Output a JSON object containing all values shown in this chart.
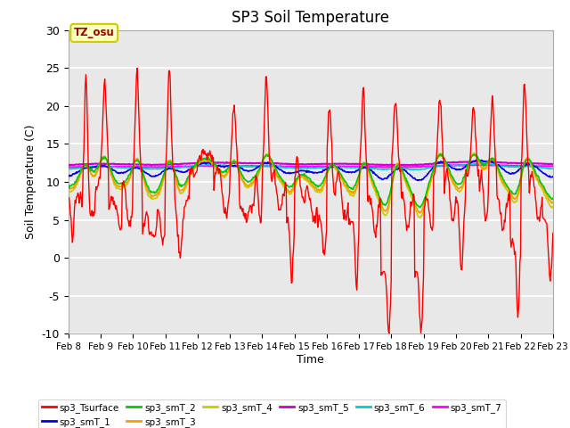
{
  "title": "SP3 Soil Temperature",
  "xlabel": "Time",
  "ylabel": "Soil Temperature (C)",
  "ylim": [
    -10,
    30
  ],
  "xlim": [
    0,
    360
  ],
  "plot_bg_color": "#e8e8e8",
  "fig_bg_color": "#ffffff",
  "annotation_text": "TZ_osu",
  "annotation_color": "#990000",
  "annotation_bg": "#ffffc0",
  "annotation_border": "#cccc00",
  "series_colors": {
    "sp3_Tsurface": "#ff0000",
    "sp3_smT_1": "#0000ee",
    "sp3_smT_2": "#00cc00",
    "sp3_smT_3": "#ff9900",
    "sp3_smT_4": "#cccc00",
    "sp3_smT_5": "#cc00cc",
    "sp3_smT_6": "#00cccc",
    "sp3_smT_7": "#ff00ff"
  },
  "xtick_labels": [
    "Feb 8",
    "Feb 9",
    "Feb 10",
    "Feb 11",
    "Feb 12",
    "Feb 13",
    "Feb 14",
    "Feb 15",
    "Feb 16",
    "Feb 17",
    "Feb 18",
    "Feb 19",
    "Feb 20",
    "Feb 21",
    "Feb 22",
    "Feb 23"
  ],
  "xtick_positions": [
    0,
    24,
    48,
    72,
    96,
    120,
    144,
    168,
    192,
    216,
    240,
    264,
    288,
    312,
    336,
    360
  ],
  "ytick_labels": [
    "-10",
    "-5",
    "0",
    "5",
    "10",
    "15",
    "20",
    "25",
    "30"
  ],
  "ytick_positions": [
    -10,
    -5,
    0,
    5,
    10,
    15,
    20,
    25,
    30
  ],
  "n_points": 720
}
